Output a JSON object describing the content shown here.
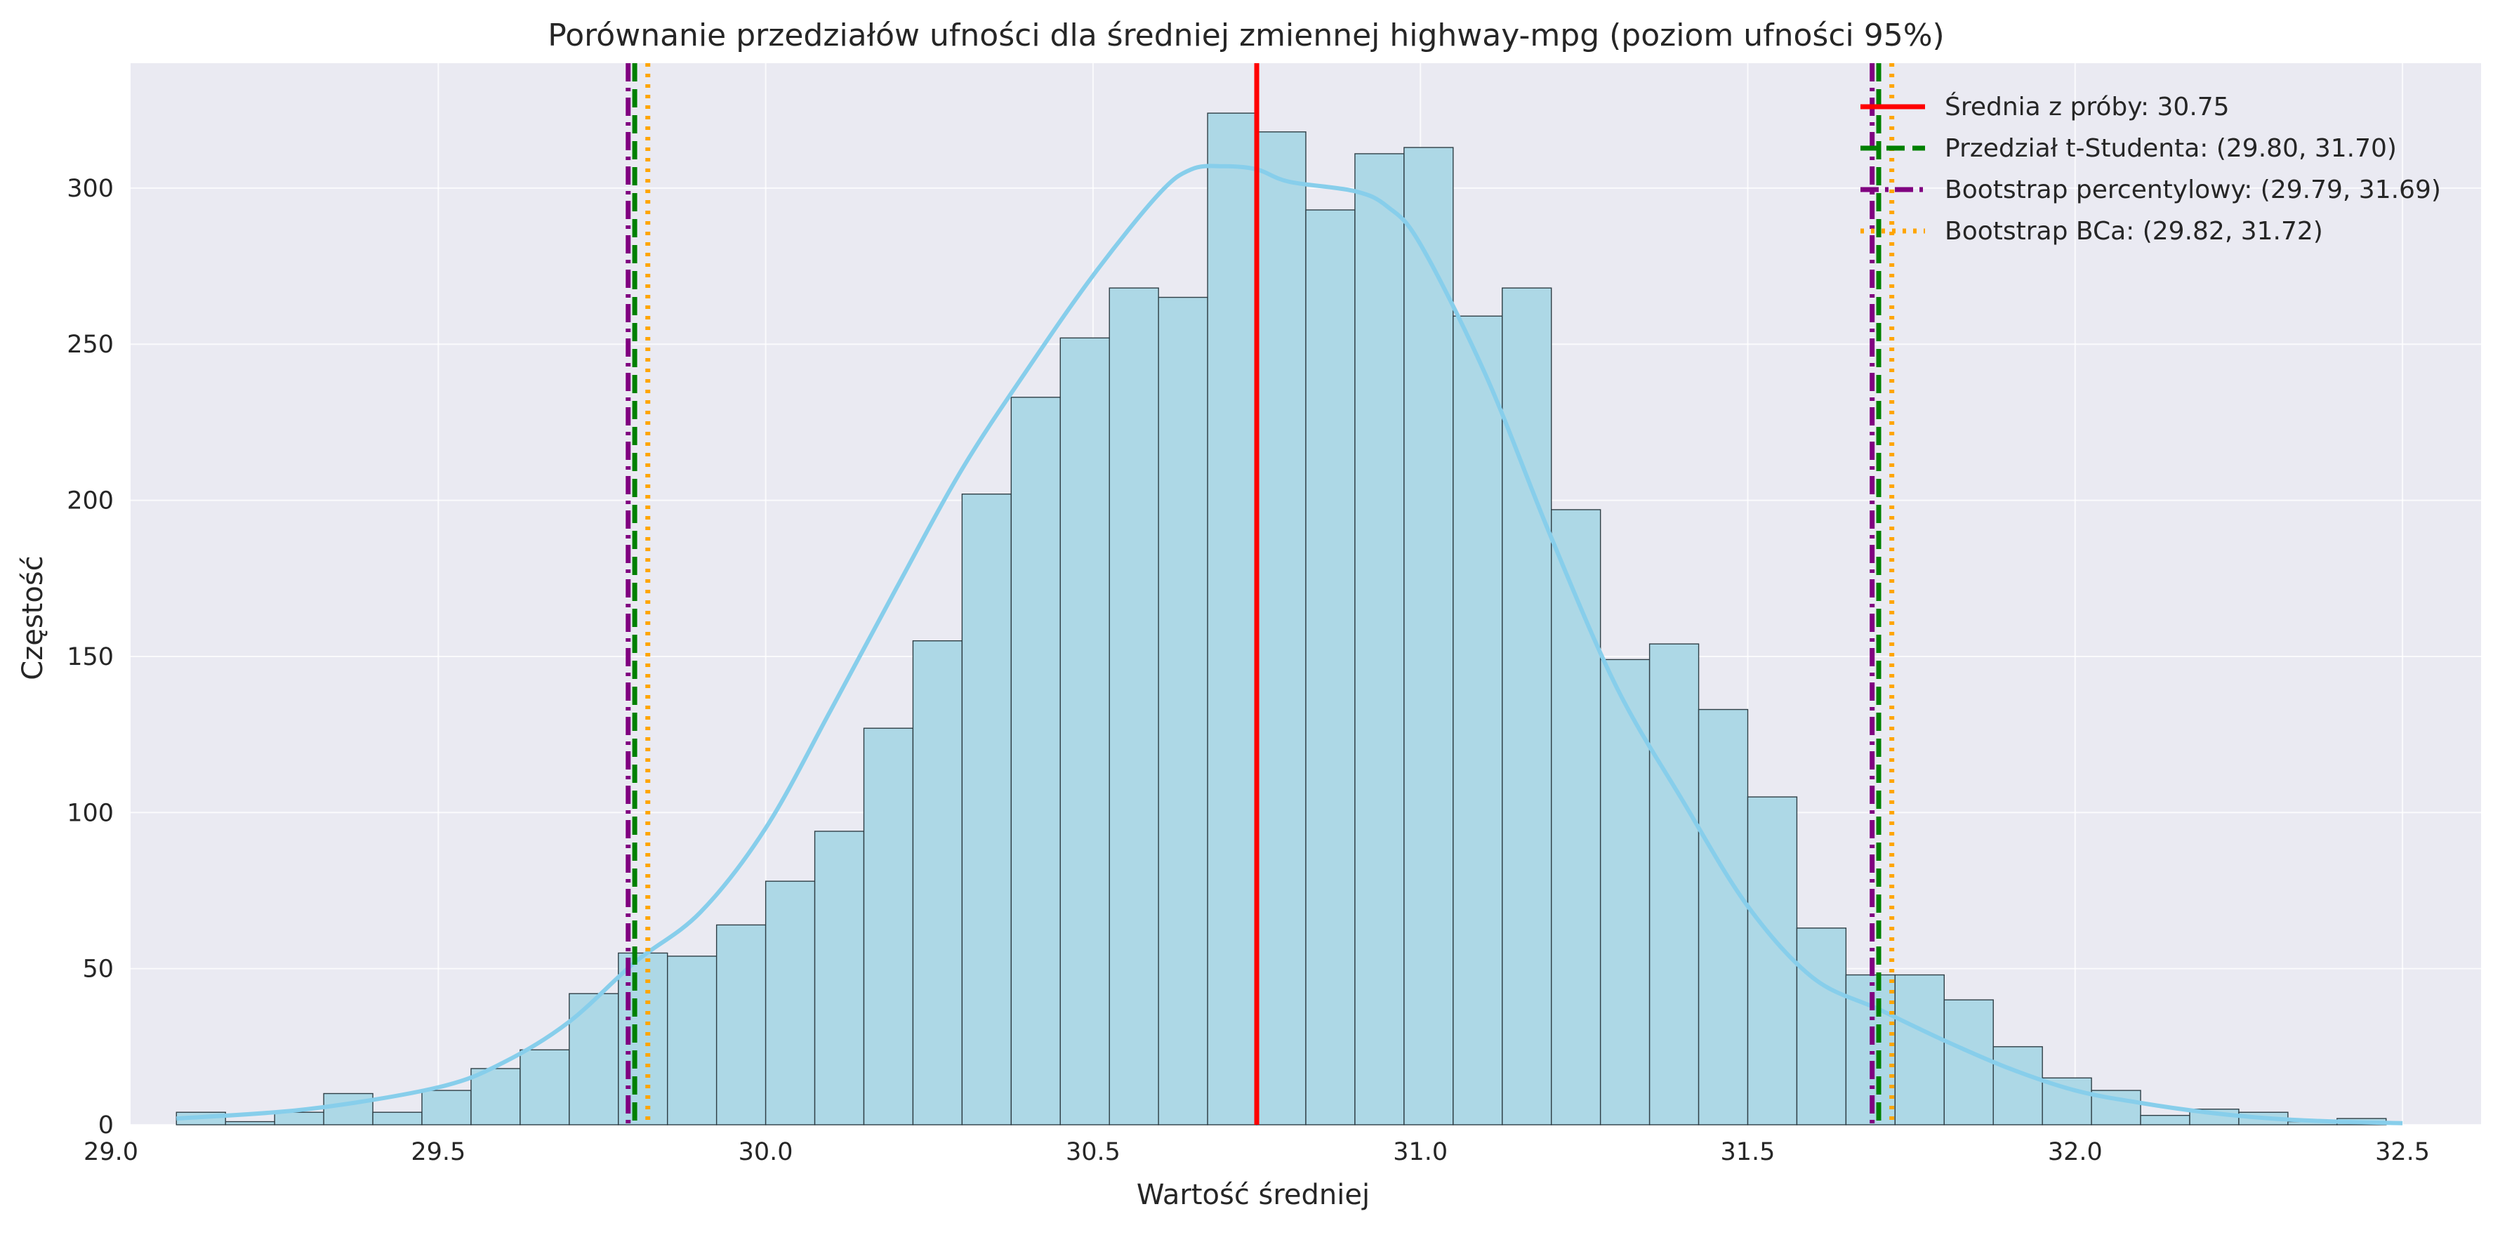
{
  "chart_data": {
    "type": "bar",
    "title": "Porównanie przedziałów ufności dla średniej zmiennej highway-mpg (poziom ufności 95%)",
    "xlabel": "Wartość średniej",
    "ylabel": "Częstość",
    "xlim": [
      29.03,
      32.62
    ],
    "ylim": [
      0,
      340
    ],
    "xticks": [
      "29.0",
      "29.5",
      "30.0",
      "30.5",
      "31.0",
      "31.5",
      "32.0",
      "32.5"
    ],
    "yticks": [
      "0",
      "50",
      "100",
      "150",
      "200",
      "250",
      "300"
    ],
    "grid": true,
    "legend_position": "top-right",
    "bin_start": 29.1,
    "bin_width": 0.075,
    "values": [
      4,
      1,
      4,
      10,
      4,
      11,
      18,
      24,
      42,
      55,
      54,
      64,
      78,
      94,
      127,
      155,
      202,
      233,
      252,
      268,
      265,
      324,
      318,
      293,
      311,
      313,
      259,
      268,
      197,
      149,
      154,
      133,
      105,
      63,
      48,
      48,
      40,
      25,
      15,
      11,
      3,
      5,
      4,
      1,
      2
    ],
    "kde": {
      "x": [
        29.1,
        29.3,
        29.5,
        29.6,
        29.7,
        29.8,
        29.9,
        30.0,
        30.1,
        30.2,
        30.3,
        30.4,
        30.5,
        30.6,
        30.65,
        30.7,
        30.75,
        30.8,
        30.9,
        30.95,
        31.0,
        31.1,
        31.2,
        31.3,
        31.4,
        31.5,
        31.6,
        31.7,
        31.8,
        31.9,
        32.0,
        32.1,
        32.2,
        32.3,
        32.4,
        32.5
      ],
      "y": [
        2,
        5,
        12,
        20,
        33,
        52,
        68,
        95,
        133,
        172,
        210,
        242,
        272,
        298,
        306,
        307,
        306,
        302,
        299,
        294,
        282,
        240,
        188,
        140,
        104,
        70,
        47,
        37,
        27,
        18,
        11,
        7,
        4,
        2,
        1,
        0.5
      ]
    },
    "series": [
      {
        "name": "Średnia z próby: 30.75",
        "style": "solid",
        "color": "#ff0000",
        "values": [
          30.75
        ]
      },
      {
        "name": "Przedział t-Studenta: (29.80, 31.70)",
        "style": "dashed",
        "color": "#008000",
        "values": [
          29.8,
          31.7
        ]
      },
      {
        "name": "Bootstrap percentylowy: (29.79, 31.69)",
        "style": "dashdot",
        "color": "#800080",
        "values": [
          29.79,
          31.69
        ]
      },
      {
        "name": "Bootstrap BCa: (29.82, 31.72)",
        "style": "dotted",
        "color": "#ffa500",
        "values": [
          29.82,
          31.72
        ]
      }
    ],
    "colors": {
      "plot_background": "#eaeaf2",
      "bar_fill": "#add8e6",
      "bar_edge": "#2f3f46",
      "kde_line": "#87ceeb",
      "grid": "#ffffff"
    }
  }
}
